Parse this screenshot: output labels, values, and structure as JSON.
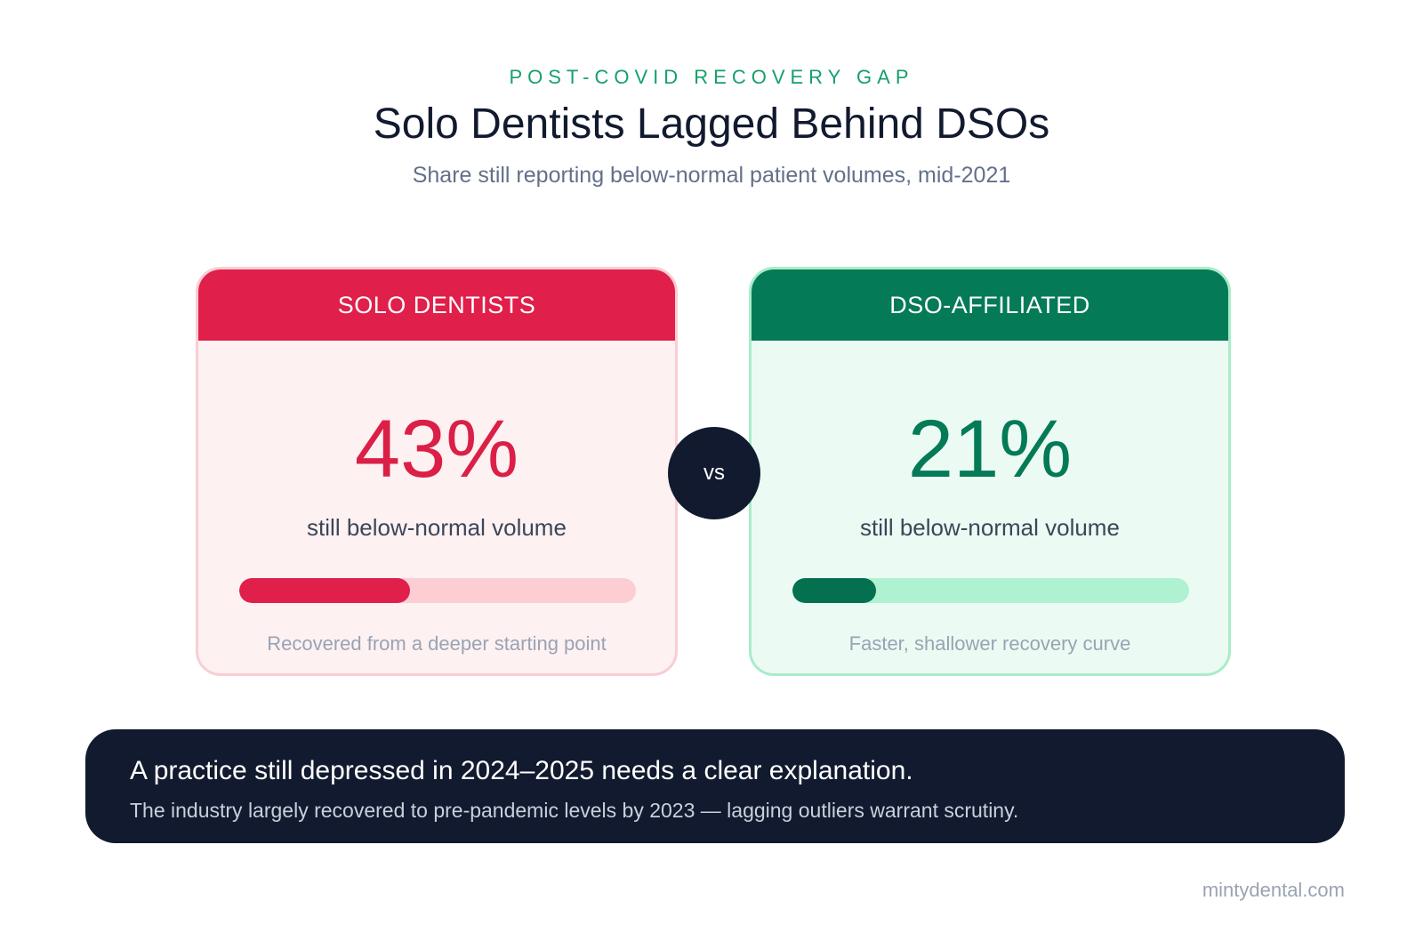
{
  "header": {
    "eyebrow": "POST-COVID RECOVERY GAP",
    "title": "Solo Dentists Lagged Behind DSOs",
    "subtitle": "Share still reporting below-normal patient volumes, mid-2021"
  },
  "chart_data": {
    "type": "bar",
    "categories": [
      "SOLO DENTISTS",
      "DSO-AFFILIATED"
    ],
    "values": [
      43,
      21
    ],
    "unit": "%",
    "value_labels": [
      "43%",
      "21%"
    ],
    "metric_label": "still below-normal volume",
    "notes": [
      "Recovered from a deeper starting point",
      "Faster, shallower recovery curve"
    ],
    "ylim": [
      0,
      100
    ],
    "colors": [
      "#e01f4b",
      "#047a57"
    ]
  },
  "comparison": {
    "separator": "vs"
  },
  "callout": {
    "headline": "A practice still depressed in 2024–2025 needs a clear explanation.",
    "detail": "The industry largely recovered to pre-pandemic levels by 2023 — lagging outliers warrant scrutiny."
  },
  "footer": {
    "source": "mintydental.com"
  }
}
